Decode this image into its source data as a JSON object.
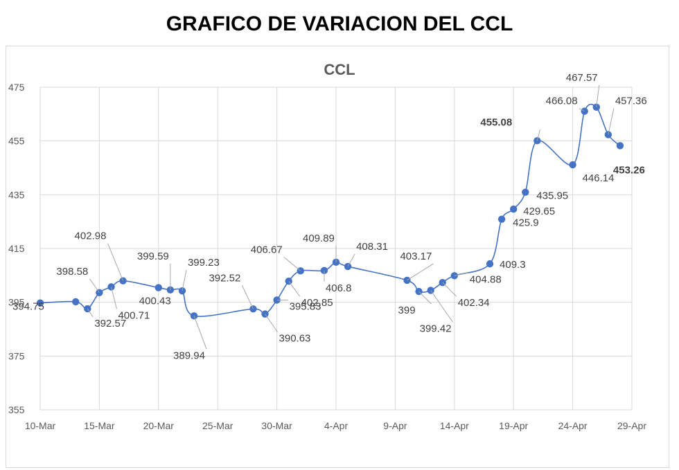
{
  "page_title": "GRAFICO DE VARIACION DEL CCL",
  "chart_data": {
    "type": "line",
    "title": "CCL",
    "xlabel": "",
    "ylabel": "",
    "x_tick_labels": [
      "10-Mar",
      "15-Mar",
      "20-Mar",
      "25-Mar",
      "30-Mar",
      "4-Apr",
      "9-Apr",
      "14-Apr",
      "19-Apr",
      "24-Apr",
      "29-Apr"
    ],
    "y_tick_labels": [
      "355",
      "375",
      "395",
      "415",
      "435",
      "455",
      "475"
    ],
    "ylim": [
      355,
      475
    ],
    "xlim": [
      "10-Mar",
      "29-Apr"
    ],
    "grid": true,
    "line_color": "#4472c4",
    "series": [
      {
        "points": [
          {
            "date": "10-Mar",
            "value": 394.75,
            "label": "394.75"
          },
          {
            "date": "13-Mar",
            "value": 395.2,
            "label": ""
          },
          {
            "date": "14-Mar",
            "value": 392.57,
            "label": "392.57"
          },
          {
            "date": "15-Mar",
            "value": 398.58,
            "label": "398.58"
          },
          {
            "date": "16-Mar",
            "value": 400.71,
            "label": "400.71"
          },
          {
            "date": "17-Mar",
            "value": 402.98,
            "label": "402.98"
          },
          {
            "date": "20-Mar",
            "value": 400.43,
            "label": "400.43"
          },
          {
            "date": "21-Mar",
            "value": 399.59,
            "label": "399.59"
          },
          {
            "date": "22-Mar",
            "value": 399.23,
            "label": "399.23"
          },
          {
            "date": "23-Mar",
            "value": 389.94,
            "label": "389.94"
          },
          {
            "date": "28-Mar",
            "value": 392.52,
            "label": "392.52"
          },
          {
            "date": "29-Mar",
            "value": 390.63,
            "label": "390.63"
          },
          {
            "date": "30-Mar",
            "value": 395.83,
            "label": "395.83"
          },
          {
            "date": "31-Mar",
            "value": 402.85,
            "label": "402.85"
          },
          {
            "date": "1-Apr",
            "value": 406.67,
            "label": "406.67"
          },
          {
            "date": "3-Apr",
            "value": 406.8,
            "label": "406.8"
          },
          {
            "date": "4-Apr",
            "value": 409.89,
            "label": "409.89"
          },
          {
            "date": "5-Apr",
            "value": 408.31,
            "label": "408.31"
          },
          {
            "date": "10-Apr",
            "value": 403.17,
            "label": "403.17"
          },
          {
            "date": "11-Apr",
            "value": 399,
            "label": "399"
          },
          {
            "date": "12-Apr",
            "value": 399.42,
            "label": "399.42"
          },
          {
            "date": "13-Apr",
            "value": 402.34,
            "label": "402.34"
          },
          {
            "date": "14-Apr",
            "value": 404.88,
            "label": "404.88"
          },
          {
            "date": "17-Apr",
            "value": 409.3,
            "label": "409.3"
          },
          {
            "date": "18-Apr",
            "value": 425.9,
            "label": "425.9"
          },
          {
            "date": "19-Apr",
            "value": 429.65,
            "label": "429.65"
          },
          {
            "date": "20-Apr",
            "value": 435.95,
            "label": "435.95"
          },
          {
            "date": "21-Apr",
            "value": 455.08,
            "label": "455.08",
            "emphasis": true
          },
          {
            "date": "24-Apr",
            "value": 446.14,
            "label": "446.14"
          },
          {
            "date": "25-Apr",
            "value": 466.08,
            "label": "466.08"
          },
          {
            "date": "26-Apr",
            "value": 467.57,
            "label": "467.57"
          },
          {
            "date": "27-Apr",
            "value": 457.36,
            "label": "457.36"
          },
          {
            "date": "28-Apr",
            "value": 453.26,
            "label": "453.26",
            "emphasis": true
          }
        ]
      }
    ]
  }
}
